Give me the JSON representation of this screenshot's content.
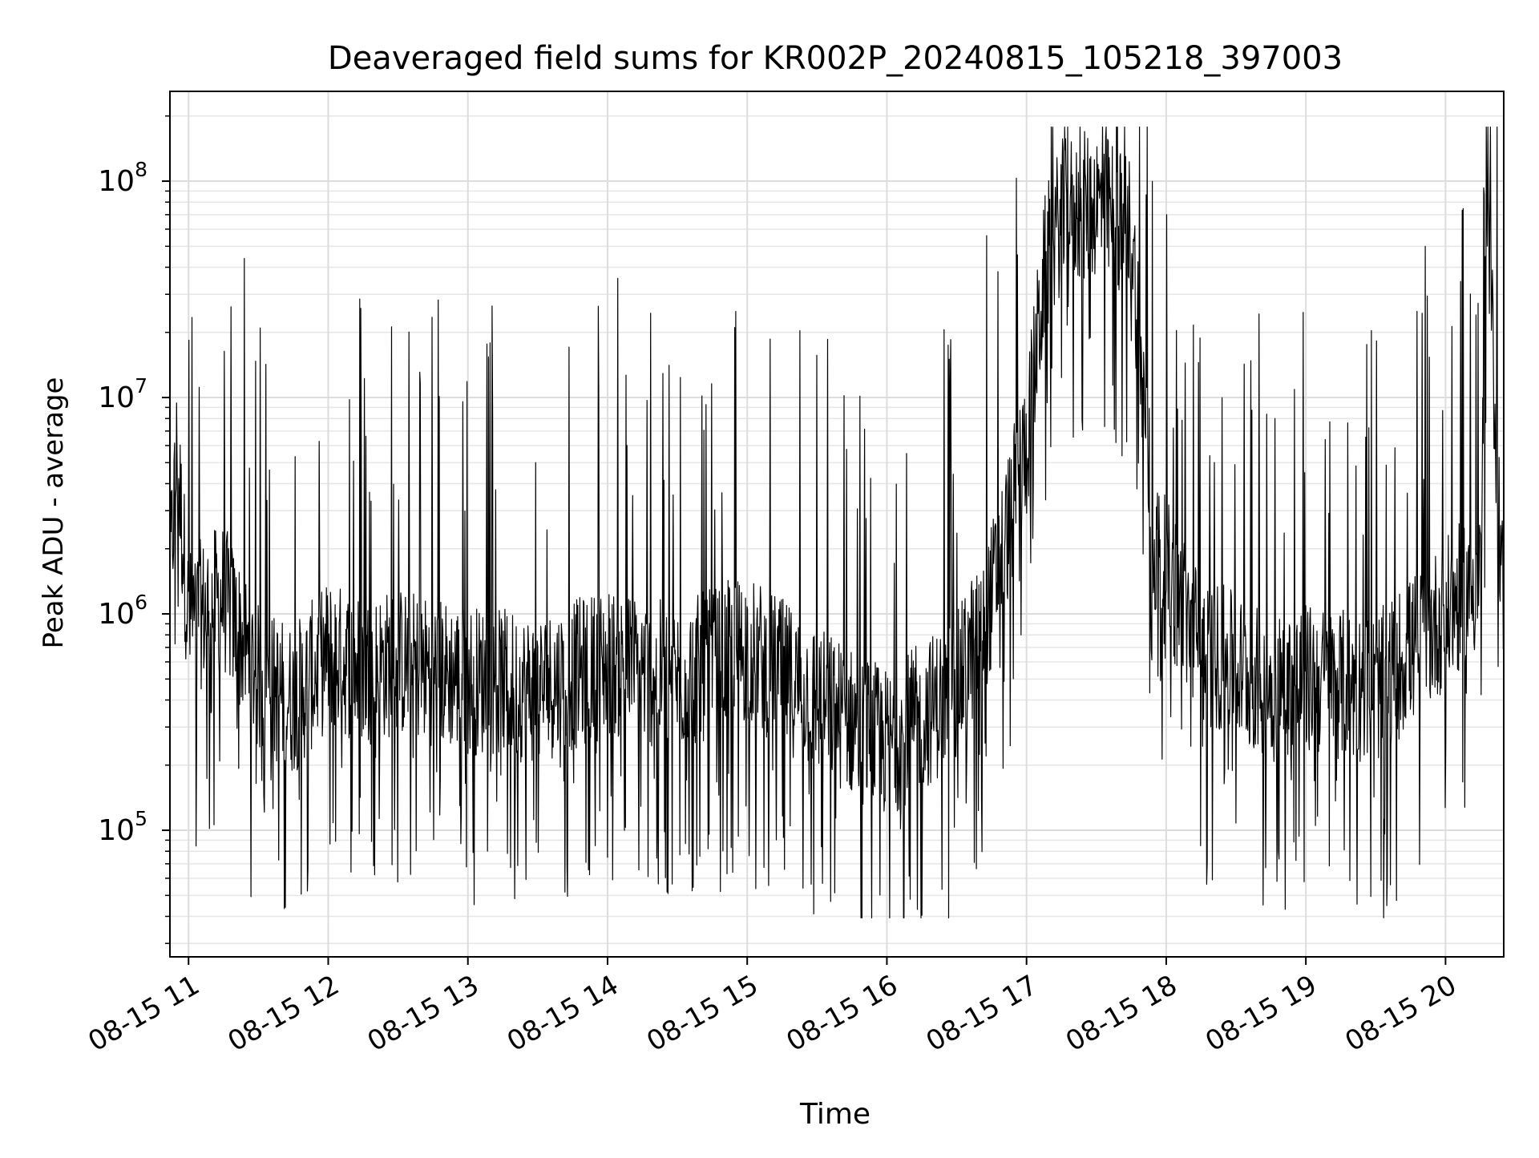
{
  "chart_data": {
    "type": "line",
    "title": "Deaveraged field sums for KR002P_20240815_105218_397003",
    "xlabel": "Time",
    "ylabel": "Peak ADU - average",
    "yscale": "log",
    "ylim": [
      26000,
      260000000
    ],
    "xlim": [
      "2024-08-15 10:52",
      "2024-08-15 20:25"
    ],
    "grid": "on (major and minor)",
    "line_color": "#000000",
    "x_tick_labels": [
      "08-15 11",
      "08-15 12",
      "08-15 13",
      "08-15 14",
      "08-15 15",
      "08-15 16",
      "08-15 17",
      "08-15 18",
      "08-15 19",
      "08-15 20"
    ],
    "y_tick_labels": [
      {
        "value": 100000,
        "base": "10",
        "exp": "5"
      },
      {
        "value": 1000000,
        "base": "10",
        "exp": "6"
      },
      {
        "value": 10000000,
        "base": "10",
        "exp": "7"
      },
      {
        "value": 100000000,
        "base": "10",
        "exp": "8"
      }
    ],
    "series": [
      {
        "x": [
          "2024-08-15 10:52",
          "2024-08-15 10:55",
          "2024-08-15 11:00",
          "2024-08-15 11:15",
          "2024-08-15 11:30",
          "2024-08-15 11:45",
          "2024-08-15 12:00",
          "2024-08-15 12:15",
          "2024-08-15 12:30",
          "2024-08-15 13:00",
          "2024-08-15 13:30",
          "2024-08-15 14:00",
          "2024-08-15 14:30",
          "2024-08-15 15:00",
          "2024-08-15 15:30",
          "2024-08-15 16:00",
          "2024-08-15 16:30",
          "2024-08-15 16:45",
          "2024-08-15 17:00",
          "2024-08-15 17:08",
          "2024-08-15 17:15",
          "2024-08-15 17:30",
          "2024-08-15 17:45",
          "2024-08-15 17:55",
          "2024-08-15 18:15",
          "2024-08-15 18:45",
          "2024-08-15 19:00",
          "2024-08-15 19:30",
          "2024-08-15 20:00",
          "2024-08-15 20:15",
          "2024-08-15 20:18",
          "2024-08-15 20:25"
        ],
        "y": [
          1500000,
          5500000,
          900000,
          1200000,
          500000,
          400000,
          650000,
          550000,
          600000,
          500000,
          450000,
          600000,
          500000,
          700000,
          400000,
          250000,
          450000,
          1200000,
          6000000,
          40000000,
          70000000,
          80000000,
          60000000,
          2000000,
          700000,
          450000,
          500000,
          450000,
          1000000,
          1500000,
          70000000,
          900000
        ]
      }
    ]
  }
}
